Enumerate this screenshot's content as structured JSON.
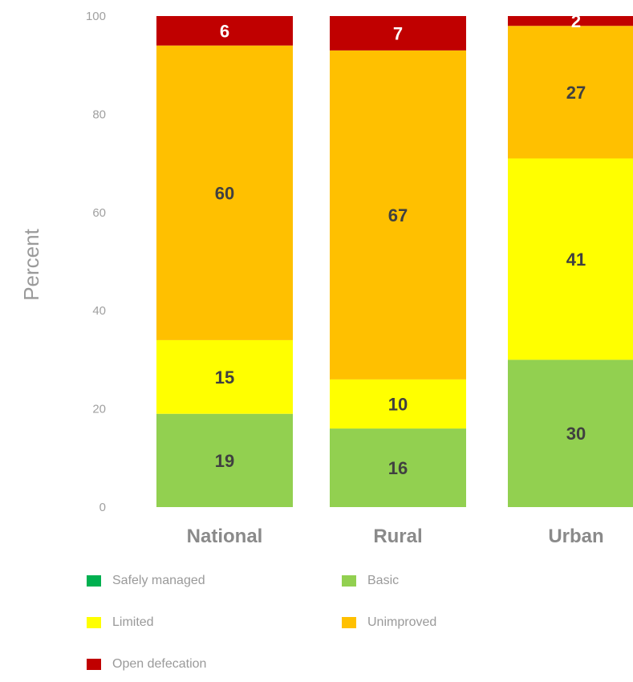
{
  "chart_data": {
    "type": "bar",
    "stacked": true,
    "ylabel": "Percent",
    "yticks": [
      "0",
      "20",
      "40",
      "60",
      "80",
      "100"
    ],
    "ylim": [
      0,
      100
    ],
    "categories": [
      "National",
      "Rural",
      "Urban"
    ],
    "series": [
      {
        "name": "Safely managed",
        "color": "#00b050",
        "values": [
          0,
          0,
          0
        ],
        "labels": [
          "0",
          "0",
          "0"
        ]
      },
      {
        "name": "Basic",
        "color": "#92d050",
        "values": [
          19,
          16,
          30
        ],
        "labels": [
          "19",
          "16",
          "30"
        ]
      },
      {
        "name": "Limited",
        "color": "#ffff00",
        "values": [
          15,
          10,
          41
        ],
        "labels": [
          "15",
          "10",
          "41"
        ]
      },
      {
        "name": "Unimproved",
        "color": "#ffc000",
        "values": [
          60,
          67,
          27
        ],
        "labels": [
          "60",
          "67",
          "27"
        ]
      },
      {
        "name": "Open defecation",
        "color": "#c00000",
        "values": [
          6,
          7,
          2
        ],
        "labels": [
          "6",
          "7",
          "2"
        ]
      }
    ],
    "legend": {
      "placement": "bottom",
      "columns": 2
    }
  }
}
